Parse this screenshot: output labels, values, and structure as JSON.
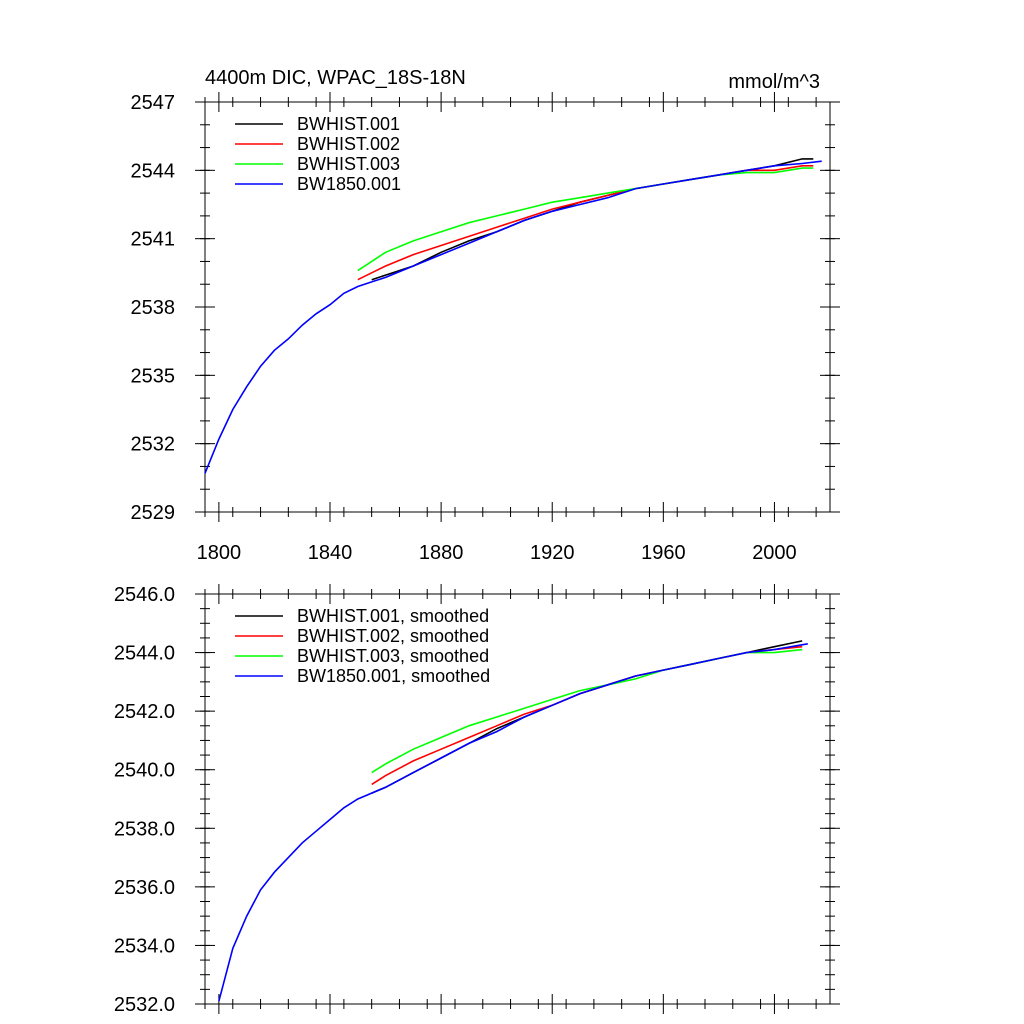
{
  "chart_data": [
    {
      "type": "line",
      "title": "4400m DIC, WPAC_18S-18N",
      "units": "mmol/m^3",
      "xlim": [
        1795,
        2020
      ],
      "ylim": [
        2529,
        2547
      ],
      "xticks": [
        1800,
        1840,
        1880,
        1920,
        1960,
        2000
      ],
      "xtick_labels": [
        "1800",
        "1840",
        "1880",
        "1920",
        "1960",
        "2000"
      ],
      "yticks": [
        2529,
        2532,
        2535,
        2538,
        2541,
        2544,
        2547
      ],
      "ytick_labels": [
        "2529",
        "2532",
        "2535",
        "2538",
        "2541",
        "2544",
        "2547"
      ],
      "legend_position": "top-left",
      "grid": false,
      "series": [
        {
          "name": "BWHIST.001",
          "color": "#000000",
          "x": [
            1855,
            1860,
            1870,
            1880,
            1890,
            1900,
            1910,
            1920,
            1930,
            1940,
            1950,
            1960,
            1970,
            1980,
            1990,
            2000,
            2010,
            2014
          ],
          "y": [
            2539.2,
            2539.4,
            2539.8,
            2540.4,
            2540.9,
            2541.3,
            2541.8,
            2542.2,
            2542.6,
            2542.9,
            2543.2,
            2543.4,
            2543.6,
            2543.8,
            2544.0,
            2544.2,
            2544.5,
            2544.5
          ]
        },
        {
          "name": "BWHIST.002",
          "color": "#ff0000",
          "x": [
            1850,
            1855,
            1860,
            1870,
            1880,
            1890,
            1900,
            1910,
            1920,
            1930,
            1940,
            1950,
            1960,
            1970,
            1980,
            1990,
            2000,
            2010,
            2014
          ],
          "y": [
            2539.2,
            2539.5,
            2539.8,
            2540.3,
            2540.7,
            2541.1,
            2541.5,
            2541.9,
            2542.3,
            2542.6,
            2542.9,
            2543.2,
            2543.4,
            2543.6,
            2543.8,
            2544.0,
            2544.0,
            2544.2,
            2544.2
          ]
        },
        {
          "name": "BWHIST.003",
          "color": "#00ff00",
          "x": [
            1850,
            1855,
            1860,
            1870,
            1880,
            1890,
            1900,
            1910,
            1920,
            1930,
            1940,
            1950,
            1960,
            1970,
            1980,
            1990,
            2000,
            2010,
            2014
          ],
          "y": [
            2539.6,
            2540.0,
            2540.4,
            2540.9,
            2541.3,
            2541.7,
            2542.0,
            2542.3,
            2542.6,
            2542.8,
            2543.0,
            2543.2,
            2543.4,
            2543.6,
            2543.8,
            2543.9,
            2543.9,
            2544.1,
            2544.1
          ]
        },
        {
          "name": "BW1850.001",
          "color": "#0000ff",
          "x": [
            1795,
            1800,
            1805,
            1810,
            1815,
            1820,
            1825,
            1830,
            1835,
            1840,
            1845,
            1850,
            1855,
            1860,
            1870,
            1880,
            1890,
            1900,
            1910,
            1920,
            1930,
            1940,
            1950,
            1960,
            1970,
            1980,
            1990,
            2000,
            2010,
            2017
          ],
          "y": [
            2530.7,
            2532.2,
            2533.5,
            2534.5,
            2535.4,
            2536.1,
            2536.6,
            2537.2,
            2537.7,
            2538.1,
            2538.6,
            2538.9,
            2539.1,
            2539.3,
            2539.8,
            2540.3,
            2540.8,
            2541.3,
            2541.8,
            2542.2,
            2542.5,
            2542.8,
            2543.2,
            2543.4,
            2543.6,
            2543.8,
            2544.0,
            2544.2,
            2544.3,
            2544.4
          ]
        }
      ]
    },
    {
      "type": "line",
      "xlim": [
        1795,
        2020
      ],
      "ylim": [
        2532.0,
        2546.0
      ],
      "xticks": [
        1800,
        1840,
        1880,
        1920,
        1960,
        2000
      ],
      "yticks": [
        2532.0,
        2534.0,
        2536.0,
        2538.0,
        2540.0,
        2542.0,
        2544.0,
        2546.0
      ],
      "ytick_labels": [
        "2532.0",
        "2534.0",
        "2536.0",
        "2538.0",
        "2540.0",
        "2542.0",
        "2544.0",
        "2546.0"
      ],
      "legend_position": "top-left",
      "grid": false,
      "series": [
        {
          "name": "BWHIST.001, smoothed",
          "color": "#000000",
          "x": [
            1855,
            1860,
            1870,
            1880,
            1890,
            1900,
            1910,
            1920,
            1930,
            1940,
            1950,
            1960,
            1970,
            1980,
            1990,
            2000,
            2010
          ],
          "y": [
            2539.2,
            2539.4,
            2539.9,
            2540.4,
            2540.9,
            2541.4,
            2541.8,
            2542.2,
            2542.6,
            2542.9,
            2543.2,
            2543.4,
            2543.6,
            2543.8,
            2544.0,
            2544.2,
            2544.4
          ]
        },
        {
          "name": "BWHIST.002, smoothed",
          "color": "#ff0000",
          "x": [
            1855,
            1860,
            1870,
            1880,
            1890,
            1900,
            1910,
            1920,
            1930,
            1940,
            1950,
            1960,
            1970,
            1980,
            1990,
            2000,
            2010
          ],
          "y": [
            2539.5,
            2539.8,
            2540.3,
            2540.7,
            2541.1,
            2541.5,
            2541.9,
            2542.2,
            2542.6,
            2542.9,
            2543.2,
            2543.4,
            2543.6,
            2543.8,
            2544.0,
            2544.1,
            2544.2
          ]
        },
        {
          "name": "BWHIST.003, smoothed",
          "color": "#00ff00",
          "x": [
            1855,
            1860,
            1870,
            1880,
            1890,
            1900,
            1910,
            1920,
            1930,
            1940,
            1950,
            1960,
            1970,
            1980,
            1990,
            2000,
            2010
          ],
          "y": [
            2539.9,
            2540.2,
            2540.7,
            2541.1,
            2541.5,
            2541.8,
            2542.1,
            2542.4,
            2542.7,
            2542.9,
            2543.1,
            2543.4,
            2543.6,
            2543.8,
            2544.0,
            2544.0,
            2544.1
          ]
        },
        {
          "name": "BW1850.001, smoothed",
          "color": "#0000ff",
          "x": [
            1800,
            1805,
            1810,
            1815,
            1820,
            1825,
            1830,
            1835,
            1840,
            1845,
            1850,
            1855,
            1860,
            1870,
            1880,
            1890,
            1900,
            1910,
            1920,
            1930,
            1940,
            1950,
            1960,
            1970,
            1980,
            1990,
            2000,
            2012
          ],
          "y": [
            2532.1,
            2533.9,
            2535.0,
            2535.9,
            2536.5,
            2537.0,
            2537.5,
            2537.9,
            2538.3,
            2538.7,
            2539.0,
            2539.2,
            2539.4,
            2539.9,
            2540.4,
            2540.9,
            2541.3,
            2541.8,
            2542.2,
            2542.6,
            2542.9,
            2543.2,
            2543.4,
            2543.6,
            2543.8,
            2544.0,
            2544.1,
            2544.3
          ]
        }
      ]
    }
  ]
}
